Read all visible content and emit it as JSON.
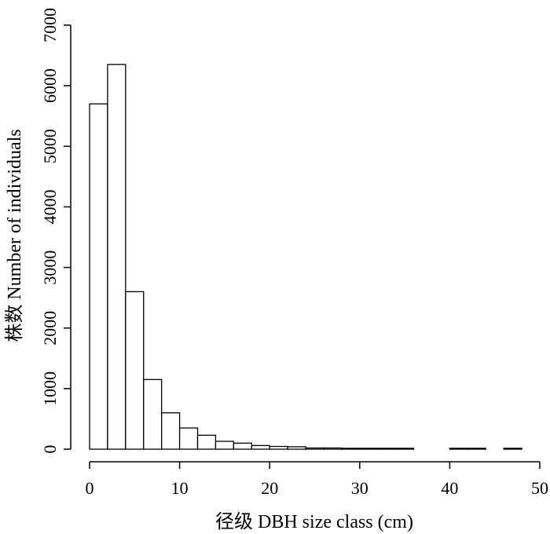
{
  "chart_data": {
    "type": "bar",
    "title": "",
    "xlabel": "径级 DBH size class (cm)",
    "ylabel": "株数 Number of individuals",
    "xlim": [
      0,
      50
    ],
    "ylim": [
      0,
      7000
    ],
    "xticks": [
      0,
      10,
      20,
      30,
      40,
      50
    ],
    "yticks": [
      0,
      1000,
      2000,
      3000,
      4000,
      5000,
      6000,
      7000
    ],
    "bin_width": 2,
    "bins": [
      {
        "x0": 0,
        "x1": 2,
        "value": 5700
      },
      {
        "x0": 2,
        "x1": 4,
        "value": 6350
      },
      {
        "x0": 4,
        "x1": 6,
        "value": 2600
      },
      {
        "x0": 6,
        "x1": 8,
        "value": 1150
      },
      {
        "x0": 8,
        "x1": 10,
        "value": 600
      },
      {
        "x0": 10,
        "x1": 12,
        "value": 350
      },
      {
        "x0": 12,
        "x1": 14,
        "value": 230
      },
      {
        "x0": 14,
        "x1": 16,
        "value": 130
      },
      {
        "x0": 16,
        "x1": 18,
        "value": 100
      },
      {
        "x0": 18,
        "x1": 20,
        "value": 60
      },
      {
        "x0": 20,
        "x1": 22,
        "value": 45
      },
      {
        "x0": 22,
        "x1": 24,
        "value": 40
      },
      {
        "x0": 24,
        "x1": 26,
        "value": 20
      },
      {
        "x0": 26,
        "x1": 28,
        "value": 20
      },
      {
        "x0": 28,
        "x1": 30,
        "value": 15
      },
      {
        "x0": 30,
        "x1": 32,
        "value": 15
      },
      {
        "x0": 32,
        "x1": 34,
        "value": 15
      },
      {
        "x0": 34,
        "x1": 36,
        "value": 15
      },
      {
        "x0": 36,
        "x1": 38,
        "value": 0
      },
      {
        "x0": 38,
        "x1": 40,
        "value": 0
      },
      {
        "x0": 40,
        "x1": 42,
        "value": 15
      },
      {
        "x0": 42,
        "x1": 44,
        "value": 15
      },
      {
        "x0": 44,
        "x1": 46,
        "value": 0
      },
      {
        "x0": 46,
        "x1": 48,
        "value": 15
      }
    ]
  }
}
